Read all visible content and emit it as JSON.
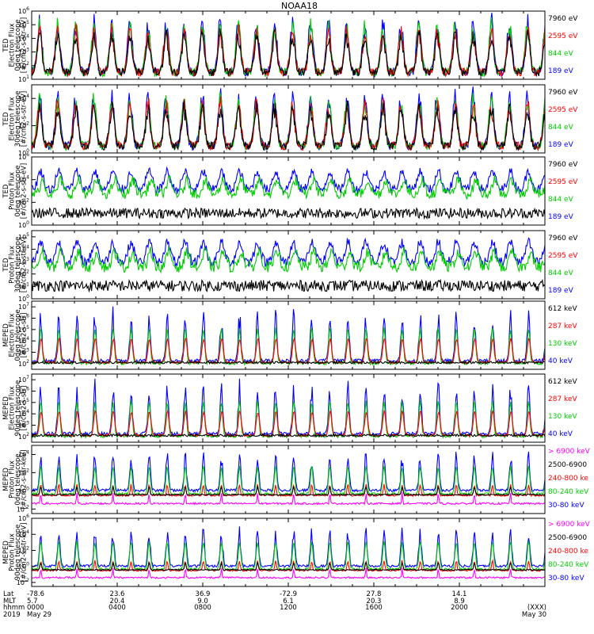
{
  "title": "NOAA18",
  "panels": [
    {
      "ylabel": [
        "TED",
        "Electron Flux",
        "0deg telescope",
        "[#/cm2-s-str-eV]"
      ],
      "yticks": [
        {
          "e": 1,
          "t": "10"
        },
        {
          "e": 2,
          "t": "10"
        },
        {
          "e": 3,
          "t": "10"
        },
        {
          "e": 4,
          "t": "10"
        },
        {
          "e": 5,
          "t": "10"
        },
        {
          "e": 6,
          "t": "10"
        }
      ],
      "ylog": [
        1,
        6
      ],
      "style": "spiky",
      "legend": [
        {
          "text": "7960 eV",
          "color": "#000000"
        },
        {
          "text": "2595 eV",
          "color": "#ff0000"
        },
        {
          "text": "844 eV",
          "color": "#00cc00"
        },
        {
          "text": "189 eV",
          "color": "#0000ff"
        }
      ]
    },
    {
      "ylabel": [
        "TED",
        "Electron Flux",
        "30deg telescope",
        "[#/cm2-s-str-eV]"
      ],
      "yticks": [
        {
          "e": 0,
          "t": "10"
        },
        {
          "e": 2,
          "t": "10"
        },
        {
          "e": 4,
          "t": "10"
        }
      ],
      "ylog": [
        0,
        5
      ],
      "style": "spiky",
      "legend": [
        {
          "text": "7960 eV",
          "color": "#000000"
        },
        {
          "text": "2595 eV",
          "color": "#ff0000"
        },
        {
          "text": "844 eV",
          "color": "#00cc00"
        },
        {
          "text": "189 eV",
          "color": "#0000ff"
        }
      ]
    },
    {
      "ylabel": [
        "TED",
        "Proton Flux",
        "0deg telescope",
        "[#/cm2-s-str-eV]"
      ],
      "yticks": [
        {
          "e": 0,
          "t": "10"
        },
        {
          "e": 2,
          "t": "10"
        },
        {
          "e": 4,
          "t": "10"
        },
        {
          "e": 6,
          "t": "10"
        }
      ],
      "ylog": [
        0,
        6
      ],
      "style": "proton",
      "legend": [
        {
          "text": "7960 eV",
          "color": "#000000"
        },
        {
          "text": "2595 eV",
          "color": "#ff0000"
        },
        {
          "text": "844 eV",
          "color": "#00cc00"
        },
        {
          "text": "189 eV",
          "color": "#0000ff"
        }
      ]
    },
    {
      "ylabel": [
        "TED",
        "Proton Flux",
        "30deg telescope",
        "[#/cm2-s-str-eV]"
      ],
      "yticks": [
        {
          "e": 0,
          "t": "10"
        },
        {
          "e": 1,
          "t": "10"
        },
        {
          "e": 2,
          "t": "10"
        },
        {
          "e": 3,
          "t": "10"
        },
        {
          "e": 4,
          "t": "10"
        },
        {
          "e": 5,
          "t": "10"
        }
      ],
      "ylog": [
        0,
        5.5
      ],
      "style": "proton",
      "legend": [
        {
          "text": "7960 eV",
          "color": "#000000"
        },
        {
          "text": "2595 eV",
          "color": "#ff0000"
        },
        {
          "text": "844 eV",
          "color": "#00cc00"
        },
        {
          "text": "189 eV",
          "color": "#0000ff"
        }
      ]
    },
    {
      "ylabel": [
        "MEPED",
        "Electron Flux",
        "0deg telescope",
        "[#/cm2-s-str]"
      ],
      "yticks": [
        {
          "e": 2,
          "t": "10"
        },
        {
          "e": 3,
          "t": "10"
        },
        {
          "e": 4,
          "t": "10"
        },
        {
          "e": 5,
          "t": "10"
        },
        {
          "e": 6,
          "t": "10"
        },
        {
          "e": 7,
          "t": "10"
        }
      ],
      "ylog": [
        1.5,
        7.5
      ],
      "style": "meped",
      "legend": [
        {
          "text": "612 keV",
          "color": "#000000"
        },
        {
          "text": "287 keV",
          "color": "#ff0000"
        },
        {
          "text": "130 keV",
          "color": "#00cc00"
        },
        {
          "text": "40 keV",
          "color": "#0000ff"
        }
      ]
    },
    {
      "ylabel": [
        "MEPED",
        "Electron Flux",
        "90deg telescope",
        "[#/cm2-s-str]"
      ],
      "yticks": [
        {
          "e": 2,
          "t": "10"
        },
        {
          "e": 3,
          "t": "10"
        },
        {
          "e": 4,
          "t": "10"
        },
        {
          "e": 5,
          "t": "10"
        },
        {
          "e": 6,
          "t": "10"
        },
        {
          "e": 7,
          "t": "10"
        }
      ],
      "ylog": [
        1.5,
        7.5
      ],
      "style": "meped",
      "legend": [
        {
          "text": "612 keV",
          "color": "#000000"
        },
        {
          "text": "287 keV",
          "color": "#ff0000"
        },
        {
          "text": "130 keV",
          "color": "#00cc00"
        },
        {
          "text": "40 keV",
          "color": "#0000ff"
        }
      ]
    },
    {
      "ylabel": [
        "MEPED",
        "Proton Flux",
        "0deg telescope",
        "[#/cm2-s-str-keV]"
      ],
      "yticks": [
        {
          "e": -2,
          "t": "10"
        },
        {
          "e": 0,
          "t": "10"
        },
        {
          "e": 2,
          "t": "10"
        },
        {
          "e": 4,
          "t": "10"
        }
      ],
      "ylog": [
        -2.5,
        5
      ],
      "style": "mepedp",
      "legend": [
        {
          "text": "> 6900 keV",
          "color": "#ff00ff"
        },
        {
          "text": "2500-6900",
          "color": "#000000"
        },
        {
          "text": "240-800 ke",
          "color": "#ff0000"
        },
        {
          "text": "80-240 keV",
          "color": "#00cc00"
        },
        {
          "text": "30-80 keV",
          "color": "#0000ff"
        }
      ]
    },
    {
      "ylabel": [
        "MEPED",
        "Proton Flux",
        "90deg telescope",
        "[#/cm2-s-str-keV]"
      ],
      "yticks": [
        {
          "e": -2,
          "t": "10"
        },
        {
          "e": 0,
          "t": "10"
        },
        {
          "e": 2,
          "t": "10"
        },
        {
          "e": 4,
          "t": "10"
        },
        {
          "e": 6,
          "t": "10"
        }
      ],
      "ylog": [
        -2.5,
        6
      ],
      "style": "mepedp",
      "legend": [
        {
          "text": "> 6900 keV",
          "color": "#ff00ff"
        },
        {
          "text": "2500-6900",
          "color": "#000000"
        },
        {
          "text": "240-800 ke",
          "color": "#ff0000"
        },
        {
          "text": "80-240 keV",
          "color": "#00cc00"
        },
        {
          "text": "30-80 keV",
          "color": "#0000ff"
        }
      ]
    }
  ],
  "xaxis": {
    "row_labels": [
      "Lat",
      "MLT",
      "hhmm",
      "2019"
    ],
    "ticks": [
      {
        "hour": 0,
        "lat": "-78.6",
        "mlt": "5.7",
        "hhmm": "0000",
        "date": "May 29"
      },
      {
        "hour": 4,
        "lat": "23.6",
        "mlt": "20.4",
        "hhmm": "0400",
        "date": ""
      },
      {
        "hour": 8,
        "lat": "36.9",
        "mlt": "9.0",
        "hhmm": "0800",
        "date": ""
      },
      {
        "hour": 12,
        "lat": "-72.9",
        "mlt": "6.1",
        "hhmm": "1200",
        "date": ""
      },
      {
        "hour": 16,
        "lat": "27.8",
        "mlt": "20.3",
        "hhmm": "1600",
        "date": ""
      },
      {
        "hour": 20,
        "lat": "14.1",
        "mlt": "8.9",
        "hhmm": "2000",
        "date": ""
      },
      {
        "hour": 24,
        "lat": "",
        "mlt": "",
        "hhmm": "(XXX)",
        "date": "May 30"
      }
    ]
  },
  "chart_data": {
    "type": "line",
    "title": "NOAA18",
    "x_range_hours": [
      0,
      24
    ],
    "orbit_period_hours": 1.69,
    "series_by_panel": [
      [
        "7960 eV",
        "2595 eV",
        "844 eV",
        "189 eV"
      ],
      [
        "7960 eV",
        "2595 eV",
        "844 eV",
        "189 eV"
      ],
      [
        "7960 eV",
        "2595 eV",
        "844 eV",
        "189 eV"
      ],
      [
        "7960 eV",
        "2595 eV",
        "844 eV",
        "189 eV"
      ],
      [
        "612 keV",
        "287 keV",
        "130 keV",
        "40 keV"
      ],
      [
        "612 keV",
        "287 keV",
        "130 keV",
        "40 keV"
      ],
      [
        "> 6900 keV",
        "2500-6900",
        "240-800 ke",
        "80-240 keV",
        "30-80 keV"
      ],
      [
        "> 6900 keV",
        "2500-6900",
        "240-800 ke",
        "80-240 keV",
        "30-80 keV"
      ]
    ]
  }
}
